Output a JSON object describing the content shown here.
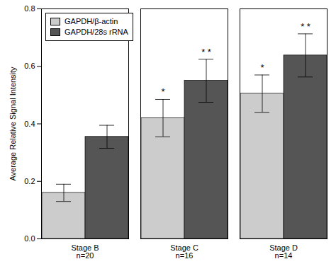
{
  "chart_data": {
    "type": "bar",
    "categories": [
      "Stage B",
      "Stage C",
      "Stage D"
    ],
    "group_n": [
      "n=20",
      "n=16",
      "n=14"
    ],
    "series": [
      {
        "name": "GAPDH/β-actin",
        "color": "#cccccc",
        "values": [
          0.16,
          0.42,
          0.505
        ],
        "errors": [
          0.03,
          0.065,
          0.065
        ],
        "stars": [
          null,
          "*",
          "*"
        ]
      },
      {
        "name": "GAPDH/28s rRNA",
        "color": "#555555",
        "values": [
          0.355,
          0.55,
          0.638
        ],
        "errors": [
          0.04,
          0.075,
          0.075
        ],
        "stars": [
          null,
          "* *",
          "* *"
        ]
      }
    ],
    "ylabel": "Average Relative Signal Intensity",
    "ylim": [
      0.0,
      0.8
    ],
    "yticks": [
      {
        "value": 0,
        "label": "0.0"
      },
      0.2,
      0.4,
      0.6,
      0.8
    ],
    "legend": "upper left",
    "grid": false
  }
}
